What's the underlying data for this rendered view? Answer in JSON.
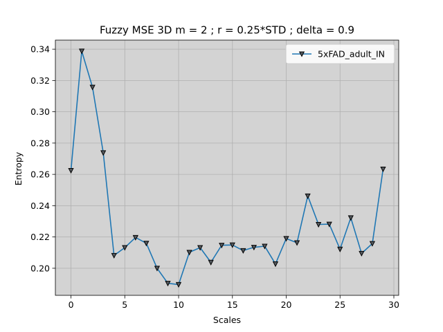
{
  "chart_data": {
    "type": "line",
    "title": "Fuzzy MSE 3D m = 2 ; r = 0.25*STD ; delta = 0.9",
    "xlabel": "Scales",
    "ylabel": "Entropy",
    "xlim": [
      -1.45,
      30.45
    ],
    "ylim": [
      0.1827,
      0.3458
    ],
    "xticks": [
      0,
      5,
      10,
      15,
      20,
      25,
      30
    ],
    "yticks": [
      0.2,
      0.22,
      0.24,
      0.26,
      0.28,
      0.3,
      0.32,
      0.34
    ],
    "grid": true,
    "legend_position": "top-right",
    "background_color": "#d3d3d3",
    "series": [
      {
        "name": "5xFAD_adult_IN",
        "color": "#1f77b4",
        "marker": "triangle-down",
        "x": [
          0,
          1,
          2,
          3,
          4,
          5,
          6,
          7,
          8,
          9,
          10,
          11,
          12,
          13,
          14,
          15,
          16,
          17,
          18,
          19,
          20,
          21,
          22,
          23,
          24,
          25,
          26,
          27,
          28,
          29
        ],
        "y": [
          0.2625,
          0.3388,
          0.3157,
          0.2738,
          0.2082,
          0.2132,
          0.2197,
          0.216,
          0.2,
          0.1904,
          0.1896,
          0.2102,
          0.2132,
          0.2038,
          0.2147,
          0.2149,
          0.2113,
          0.2134,
          0.2141,
          0.2028,
          0.219,
          0.2163,
          0.2462,
          0.228,
          0.2282,
          0.2122,
          0.2323,
          0.2095,
          0.2158,
          0.2634
        ]
      }
    ]
  }
}
